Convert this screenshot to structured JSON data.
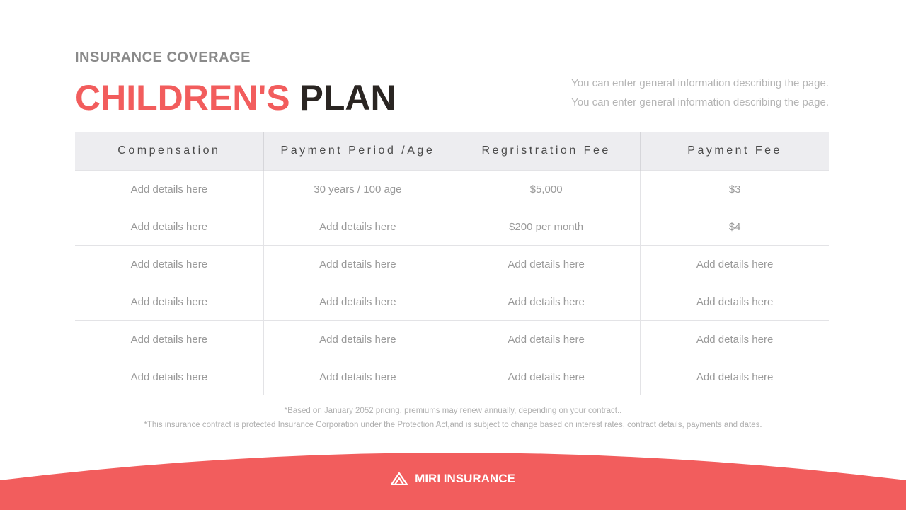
{
  "header": {
    "subtitle": "INSURANCE COVERAGE",
    "title_accent": "CHILDREN'S",
    "title_main": "PLAN",
    "description": [
      "You can enter general information describing the page.",
      "You can enter general information describing the page."
    ]
  },
  "table": {
    "columns": [
      "Compensation",
      "Payment Period /Age",
      "Regristration Fee",
      "Payment Fee"
    ],
    "rows": [
      [
        "Add details here",
        "30 years / 100 age",
        "$5,000",
        "$3"
      ],
      [
        "Add details here",
        "Add details here",
        "$200 per month",
        "$4"
      ],
      [
        "Add details here",
        "Add details here",
        "Add details here",
        "Add details here"
      ],
      [
        "Add details here",
        "Add details here",
        "Add details here",
        "Add details here"
      ],
      [
        "Add details here",
        "Add details here",
        "Add details here",
        "Add details here"
      ],
      [
        "Add details here",
        "Add details here",
        "Add details here",
        "Add details here"
      ]
    ]
  },
  "footnotes": [
    "*Based on January 2052 pricing, premiums may renew annually, depending on your contract..",
    "*This insurance contract is protected Insurance Corporation under the Protection Act,and is subject to change based on interest rates, contract details, payments and dates."
  ],
  "footer": {
    "brand": "MIRI INSURANCE",
    "logo_icon": "mountain-logo-icon"
  },
  "colors": {
    "accent": "#f25d5d",
    "dark": "#2a2522",
    "header_bg": "#ededf0"
  }
}
